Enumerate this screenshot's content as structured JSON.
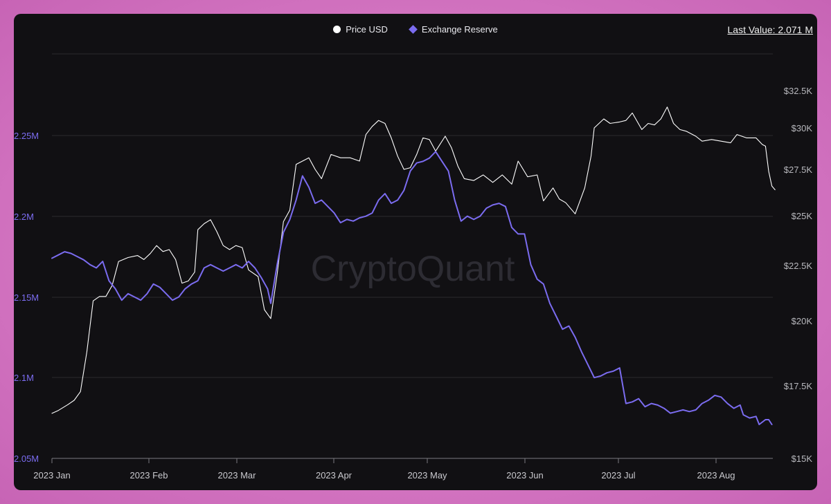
{
  "legend": [
    {
      "label": "Price USD",
      "color": "#ffffff",
      "shape": "circle"
    },
    {
      "label": "Exchange Reserve",
      "color": "#7b6cf0",
      "shape": "diamond"
    }
  ],
  "last_value": "Last Value: 2.071 M",
  "watermark": "CryptoQuant",
  "colors": {
    "background": "#111013",
    "grid": "#2a2a2e",
    "price_line": "#ffffff",
    "reserve_line": "#7b6cf0",
    "left_axis_text": "#7b6cf0",
    "right_axis_text": "#b8b8bd"
  },
  "chart_data": {
    "type": "line",
    "x_ticks": [
      "2023 Jan",
      "2023 Feb",
      "2023 Mar",
      "2023 Apr",
      "2023 May",
      "2023 Jun",
      "2023 Jul",
      "2023 Aug"
    ],
    "x_range": [
      "2023-01-01",
      "2023-08-15"
    ],
    "left_axis": {
      "ticks": [
        "2.05M",
        "2.1M",
        "2.15M",
        "2.2M",
        "2.25M"
      ],
      "range": [
        2.05,
        2.3
      ],
      "unit": "M"
    },
    "right_axis": {
      "ticks": [
        "$15K",
        "$17.5K",
        "$20K",
        "$22.5K",
        "$25K",
        "$27.5K",
        "$30K",
        "$32.5K"
      ],
      "range": [
        15000,
        34500
      ]
    },
    "grid": "horizontal",
    "legend_position": "top-center",
    "series": [
      {
        "name": "Price USD",
        "axis": "right",
        "color": "#ffffff",
        "points": [
          [
            "2023-01-01",
            16550
          ],
          [
            "2023-01-03",
            16650
          ],
          [
            "2023-01-06",
            16850
          ],
          [
            "2023-01-08",
            17000
          ],
          [
            "2023-01-10",
            17300
          ],
          [
            "2023-01-12",
            18800
          ],
          [
            "2023-01-14",
            20900
          ],
          [
            "2023-01-16",
            21100
          ],
          [
            "2023-01-18",
            21100
          ],
          [
            "2023-01-20",
            21600
          ],
          [
            "2023-01-22",
            22700
          ],
          [
            "2023-01-25",
            22900
          ],
          [
            "2023-01-28",
            23000
          ],
          [
            "2023-01-30",
            22800
          ],
          [
            "2023-02-01",
            23100
          ],
          [
            "2023-02-03",
            23500
          ],
          [
            "2023-02-05",
            23200
          ],
          [
            "2023-02-07",
            23300
          ],
          [
            "2023-02-09",
            22800
          ],
          [
            "2023-02-11",
            21700
          ],
          [
            "2023-02-13",
            21800
          ],
          [
            "2023-02-15",
            22200
          ],
          [
            "2023-02-16",
            24300
          ],
          [
            "2023-02-18",
            24600
          ],
          [
            "2023-02-20",
            24800
          ],
          [
            "2023-02-22",
            24200
          ],
          [
            "2023-02-24",
            23500
          ],
          [
            "2023-02-26",
            23300
          ],
          [
            "2023-02-28",
            23500
          ],
          [
            "2023-03-02",
            23400
          ],
          [
            "2023-03-04",
            22300
          ],
          [
            "2023-03-07",
            22000
          ],
          [
            "2023-03-09",
            20500
          ],
          [
            "2023-03-11",
            20100
          ],
          [
            "2023-03-13",
            22100
          ],
          [
            "2023-03-15",
            24700
          ],
          [
            "2023-03-17",
            25300
          ],
          [
            "2023-03-19",
            27800
          ],
          [
            "2023-03-21",
            28000
          ],
          [
            "2023-03-23",
            28200
          ],
          [
            "2023-03-25",
            27500
          ],
          [
            "2023-03-27",
            27000
          ],
          [
            "2023-03-30",
            28400
          ],
          [
            "2023-04-02",
            28200
          ],
          [
            "2023-04-05",
            28200
          ],
          [
            "2023-04-08",
            28000
          ],
          [
            "2023-04-10",
            29600
          ],
          [
            "2023-04-12",
            30100
          ],
          [
            "2023-04-14",
            30500
          ],
          [
            "2023-04-16",
            30300
          ],
          [
            "2023-04-18",
            29400
          ],
          [
            "2023-04-20",
            28300
          ],
          [
            "2023-04-22",
            27500
          ],
          [
            "2023-04-24",
            27600
          ],
          [
            "2023-04-26",
            28400
          ],
          [
            "2023-04-28",
            29400
          ],
          [
            "2023-04-30",
            29300
          ],
          [
            "2023-05-02",
            28600
          ],
          [
            "2023-05-05",
            29500
          ],
          [
            "2023-05-07",
            28800
          ],
          [
            "2023-05-09",
            27700
          ],
          [
            "2023-05-11",
            27000
          ],
          [
            "2023-05-14",
            26900
          ],
          [
            "2023-05-17",
            27200
          ],
          [
            "2023-05-20",
            26800
          ],
          [
            "2023-05-23",
            27200
          ],
          [
            "2023-05-26",
            26700
          ],
          [
            "2023-05-28",
            28000
          ],
          [
            "2023-05-31",
            27100
          ],
          [
            "2023-06-03",
            27200
          ],
          [
            "2023-06-05",
            25800
          ],
          [
            "2023-06-08",
            26500
          ],
          [
            "2023-06-10",
            25900
          ],
          [
            "2023-06-12",
            25700
          ],
          [
            "2023-06-15",
            25100
          ],
          [
            "2023-06-18",
            26500
          ],
          [
            "2023-06-20",
            28300
          ],
          [
            "2023-06-21",
            30000
          ],
          [
            "2023-06-24",
            30600
          ],
          [
            "2023-06-26",
            30300
          ],
          [
            "2023-06-29",
            30400
          ],
          [
            "2023-07-01",
            30500
          ],
          [
            "2023-07-03",
            31000
          ],
          [
            "2023-07-06",
            29900
          ],
          [
            "2023-07-08",
            30300
          ],
          [
            "2023-07-10",
            30200
          ],
          [
            "2023-07-12",
            30600
          ],
          [
            "2023-07-14",
            31400
          ],
          [
            "2023-07-16",
            30300
          ],
          [
            "2023-07-18",
            29900
          ],
          [
            "2023-07-20",
            29800
          ],
          [
            "2023-07-23",
            29500
          ],
          [
            "2023-07-25",
            29200
          ],
          [
            "2023-07-28",
            29300
          ],
          [
            "2023-07-31",
            29200
          ],
          [
            "2023-08-03",
            29100
          ],
          [
            "2023-08-05",
            29600
          ],
          [
            "2023-08-08",
            29400
          ],
          [
            "2023-08-11",
            29400
          ],
          [
            "2023-08-13",
            29000
          ],
          [
            "2023-08-14",
            28900
          ],
          [
            "2023-08-15",
            27400
          ],
          [
            "2023-08-16",
            26600
          ],
          [
            "2023-08-17",
            26400
          ]
        ]
      },
      {
        "name": "Exchange Reserve",
        "axis": "left",
        "color": "#7b6cf0",
        "points": [
          [
            "2023-01-01",
            2.174
          ],
          [
            "2023-01-03",
            2.176
          ],
          [
            "2023-01-05",
            2.178
          ],
          [
            "2023-01-07",
            2.177
          ],
          [
            "2023-01-09",
            2.175
          ],
          [
            "2023-01-11",
            2.173
          ],
          [
            "2023-01-13",
            2.17
          ],
          [
            "2023-01-15",
            2.168
          ],
          [
            "2023-01-17",
            2.172
          ],
          [
            "2023-01-19",
            2.16
          ],
          [
            "2023-01-21",
            2.155
          ],
          [
            "2023-01-23",
            2.148
          ],
          [
            "2023-01-25",
            2.152
          ],
          [
            "2023-01-27",
            2.15
          ],
          [
            "2023-01-29",
            2.148
          ],
          [
            "2023-01-31",
            2.152
          ],
          [
            "2023-02-02",
            2.158
          ],
          [
            "2023-02-04",
            2.156
          ],
          [
            "2023-02-06",
            2.152
          ],
          [
            "2023-02-08",
            2.148
          ],
          [
            "2023-02-10",
            2.15
          ],
          [
            "2023-02-12",
            2.155
          ],
          [
            "2023-02-14",
            2.158
          ],
          [
            "2023-02-16",
            2.16
          ],
          [
            "2023-02-18",
            2.168
          ],
          [
            "2023-02-20",
            2.17
          ],
          [
            "2023-02-22",
            2.168
          ],
          [
            "2023-02-24",
            2.166
          ],
          [
            "2023-02-26",
            2.168
          ],
          [
            "2023-02-28",
            2.17
          ],
          [
            "2023-03-02",
            2.168
          ],
          [
            "2023-03-04",
            2.172
          ],
          [
            "2023-03-06",
            2.168
          ],
          [
            "2023-03-08",
            2.162
          ],
          [
            "2023-03-10",
            2.155
          ],
          [
            "2023-03-11",
            2.146
          ],
          [
            "2023-03-13",
            2.17
          ],
          [
            "2023-03-15",
            2.19
          ],
          [
            "2023-03-17",
            2.198
          ],
          [
            "2023-03-19",
            2.21
          ],
          [
            "2023-03-21",
            2.225
          ],
          [
            "2023-03-23",
            2.218
          ],
          [
            "2023-03-25",
            2.208
          ],
          [
            "2023-03-27",
            2.21
          ],
          [
            "2023-03-29",
            2.206
          ],
          [
            "2023-03-31",
            2.202
          ],
          [
            "2023-04-02",
            2.196
          ],
          [
            "2023-04-04",
            2.198
          ],
          [
            "2023-04-06",
            2.197
          ],
          [
            "2023-04-08",
            2.199
          ],
          [
            "2023-04-10",
            2.2
          ],
          [
            "2023-04-12",
            2.202
          ],
          [
            "2023-04-14",
            2.21
          ],
          [
            "2023-04-16",
            2.214
          ],
          [
            "2023-04-18",
            2.208
          ],
          [
            "2023-04-20",
            2.21
          ],
          [
            "2023-04-22",
            2.216
          ],
          [
            "2023-04-24",
            2.228
          ],
          [
            "2023-04-26",
            2.233
          ],
          [
            "2023-04-28",
            2.234
          ],
          [
            "2023-04-30",
            2.236
          ],
          [
            "2023-05-02",
            2.24
          ],
          [
            "2023-05-04",
            2.234
          ],
          [
            "2023-05-06",
            2.228
          ],
          [
            "2023-05-08",
            2.21
          ],
          [
            "2023-05-10",
            2.197
          ],
          [
            "2023-05-12",
            2.2
          ],
          [
            "2023-05-14",
            2.198
          ],
          [
            "2023-05-16",
            2.2
          ],
          [
            "2023-05-18",
            2.205
          ],
          [
            "2023-05-20",
            2.207
          ],
          [
            "2023-05-22",
            2.208
          ],
          [
            "2023-05-24",
            2.206
          ],
          [
            "2023-05-26",
            2.193
          ],
          [
            "2023-05-28",
            2.189
          ],
          [
            "2023-05-30",
            2.189
          ],
          [
            "2023-06-01",
            2.17
          ],
          [
            "2023-06-03",
            2.161
          ],
          [
            "2023-06-05",
            2.158
          ],
          [
            "2023-06-07",
            2.146
          ],
          [
            "2023-06-09",
            2.138
          ],
          [
            "2023-06-11",
            2.13
          ],
          [
            "2023-06-13",
            2.132
          ],
          [
            "2023-06-15",
            2.125
          ],
          [
            "2023-06-17",
            2.116
          ],
          [
            "2023-06-19",
            2.108
          ],
          [
            "2023-06-21",
            2.1
          ],
          [
            "2023-06-23",
            2.101
          ],
          [
            "2023-06-25",
            2.103
          ],
          [
            "2023-06-27",
            2.104
          ],
          [
            "2023-06-29",
            2.106
          ],
          [
            "2023-07-01",
            2.084
          ],
          [
            "2023-07-03",
            2.085
          ],
          [
            "2023-07-05",
            2.087
          ],
          [
            "2023-07-07",
            2.082
          ],
          [
            "2023-07-09",
            2.084
          ],
          [
            "2023-07-11",
            2.083
          ],
          [
            "2023-07-13",
            2.081
          ],
          [
            "2023-07-15",
            2.078
          ],
          [
            "2023-07-17",
            2.079
          ],
          [
            "2023-07-19",
            2.08
          ],
          [
            "2023-07-21",
            2.079
          ],
          [
            "2023-07-23",
            2.08
          ],
          [
            "2023-07-25",
            2.084
          ],
          [
            "2023-07-27",
            2.086
          ],
          [
            "2023-07-29",
            2.089
          ],
          [
            "2023-07-31",
            2.088
          ],
          [
            "2023-08-02",
            2.084
          ],
          [
            "2023-08-04",
            2.081
          ],
          [
            "2023-08-06",
            2.083
          ],
          [
            "2023-08-07",
            2.077
          ],
          [
            "2023-08-09",
            2.075
          ],
          [
            "2023-08-11",
            2.076
          ],
          [
            "2023-08-12",
            2.071
          ],
          [
            "2023-08-14",
            2.074
          ],
          [
            "2023-08-15",
            2.074
          ],
          [
            "2023-08-16",
            2.071
          ]
        ]
      }
    ]
  }
}
